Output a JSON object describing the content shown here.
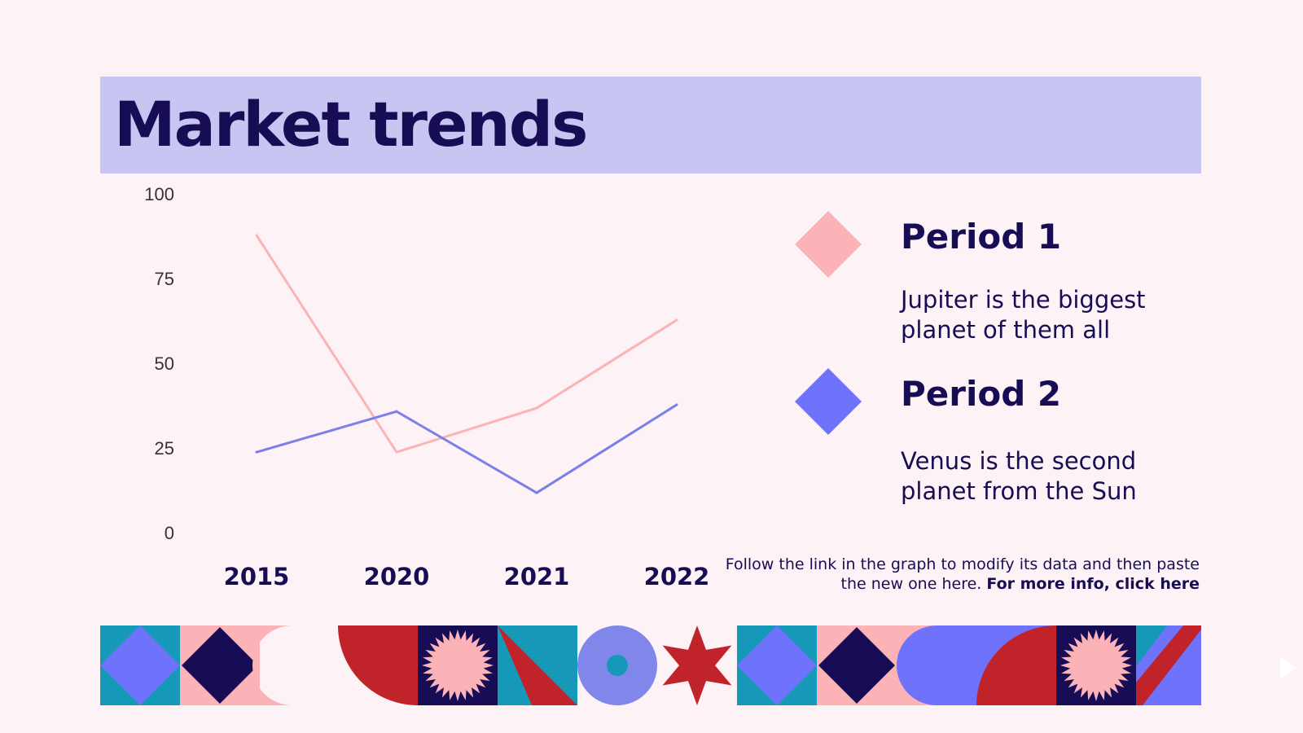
{
  "slide": {
    "title": "Market trends"
  },
  "legend": [
    {
      "name": "Period 1",
      "description_line1": "Jupiter is the biggest",
      "description_line2": "planet of them all",
      "color": "#fbb3b7"
    },
    {
      "name": "Period 2",
      "description_line1": "Venus is the second",
      "description_line2": "planet from the Sun",
      "color": "#6f72fb"
    }
  ],
  "footnote": {
    "text_line1": "Follow the link in the graph to modify its data and then paste",
    "text_line2": "the new one here. ",
    "link_text": "For more info, click here"
  },
  "chart_data": {
    "type": "line",
    "title": "Market trends",
    "categories": [
      "2015",
      "2020",
      "2021",
      "2022"
    ],
    "series": [
      {
        "name": "Period 1",
        "values": [
          88,
          24,
          37,
          63
        ],
        "color": "#fbb3b7"
      },
      {
        "name": "Period 2",
        "values": [
          24,
          36,
          12,
          38
        ],
        "color": "#7b7fe8"
      }
    ],
    "yticks": [
      0,
      25,
      50,
      75,
      100
    ],
    "ylim": [
      0,
      100
    ],
    "xlabel": "",
    "ylabel": "",
    "grid": false,
    "legend_position": "right"
  },
  "colors": {
    "background": "#fdf3f6",
    "title_bar": "#c9c5f2",
    "navy": "#170d55",
    "teal": "#1699b8",
    "periwinkle": "#6f72fb",
    "pink": "#fbb3b7",
    "red": "#c0232a",
    "lavender": "#8187ea"
  }
}
